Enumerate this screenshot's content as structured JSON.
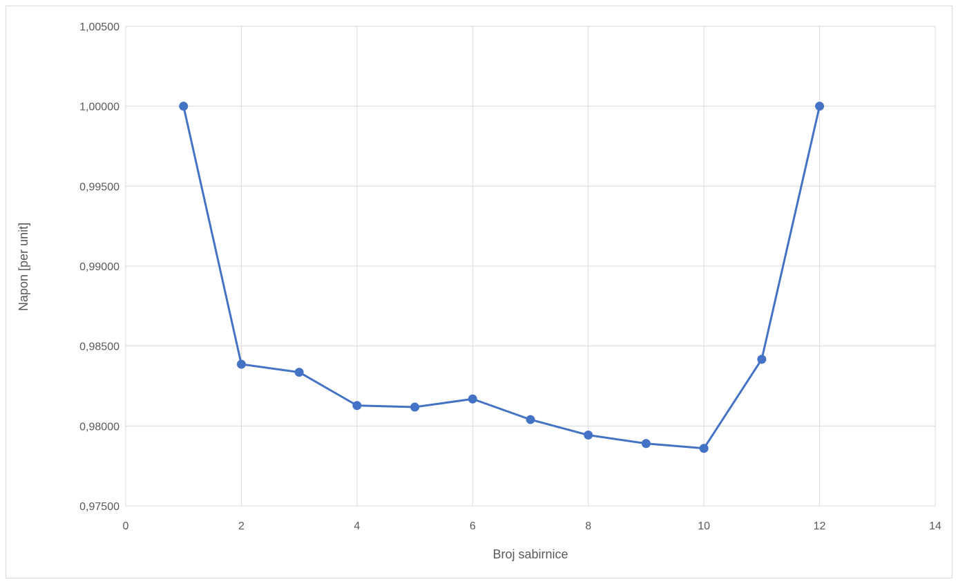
{
  "chart_data": {
    "type": "scatter",
    "title": "",
    "xlabel": "Broj sabirnice",
    "ylabel": "Napon [per unit]",
    "xlim": [
      0,
      14
    ],
    "ylim": [
      0.975,
      1.005
    ],
    "x_ticks": [
      "0",
      "2",
      "4",
      "6",
      "8",
      "10",
      "12",
      "14"
    ],
    "y_ticks": [
      "0,97500",
      "0,98000",
      "0,98500",
      "0,99000",
      "0,99500",
      "1,00000",
      "1,00500"
    ],
    "grid": true,
    "legend": "none",
    "series": [
      {
        "x": [
          1,
          2,
          3,
          4,
          5,
          6,
          7,
          8,
          9,
          10,
          11,
          12
        ],
        "y": [
          1.0,
          0.98386,
          0.98336,
          0.98128,
          0.98118,
          0.98169,
          0.9804,
          0.97943,
          0.9789,
          0.9786,
          0.98417,
          1.0
        ],
        "color": "#4472c4",
        "lines": true,
        "markers": true
      }
    ]
  }
}
